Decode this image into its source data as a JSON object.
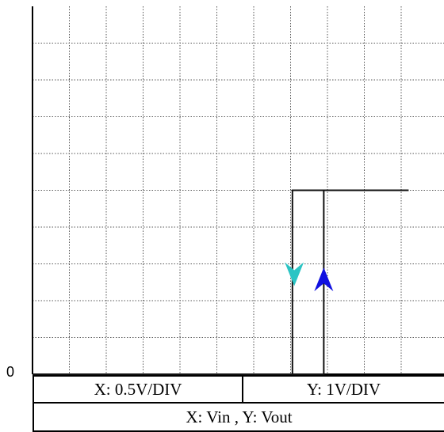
{
  "chart_data": {
    "type": "line",
    "title": "",
    "xlabel": "",
    "ylabel": "",
    "y_origin_label": "0",
    "grid": true,
    "grid_divisions": {
      "x": 10,
      "y": 10
    },
    "xlim_div": [
      0,
      10.2
    ],
    "ylim_div": [
      0,
      10
    ],
    "series": [
      {
        "direction": "decreasing-input",
        "color": "#00cccc",
        "x_div": [
          10.2,
          7.05,
          7.05,
          0
        ],
        "y_div": [
          5,
          5,
          0,
          0
        ],
        "arrow": {
          "x_div": 7.1,
          "y_div": 2.7,
          "direction": "down",
          "color": "#2bc4c4"
        }
      },
      {
        "direction": "increasing-input",
        "color": "#0000ff",
        "x_div": [
          0,
          7.9,
          7.9,
          10.2
        ],
        "y_div": [
          0,
          0,
          5,
          5
        ],
        "arrow": {
          "x_div": 7.9,
          "y_div": 2.6,
          "direction": "up",
          "color": "#1010e0"
        }
      }
    ]
  },
  "legend": {
    "x_scale": "X: 0.5V/DIV",
    "y_scale": "Y: 1V/DIV",
    "axes": "X: Vin  ,  Y: Vout"
  }
}
